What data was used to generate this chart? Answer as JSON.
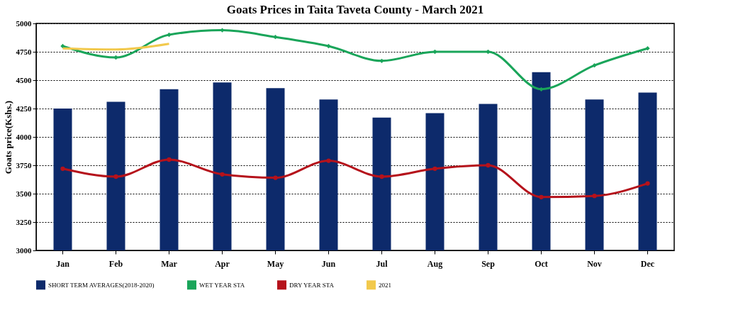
{
  "chart_data": {
    "type": "bar",
    "title": "Goats Prices in Taita Taveta County - March 2021",
    "ylabel": "Goats price(Kshs.)",
    "categories": [
      "Jan",
      "Feb",
      "Mar",
      "Apr",
      "May",
      "Jun",
      "Jul",
      "Aug",
      "Sep",
      "Oct",
      "Nov",
      "Dec"
    ],
    "series": [
      {
        "name": "SHORT TERM AVERAGES(2018-2020)",
        "color": "#0d2a6b",
        "values": [
          4250,
          4310,
          4420,
          4480,
          4430,
          4330,
          4170,
          4210,
          4290,
          4570,
          4330,
          4390
        ]
      },
      {
        "name": "WET YEAR STA",
        "type": "line",
        "color": "#1aa55a",
        "marker": "diamond",
        "values": [
          4800,
          4700,
          4900,
          4940,
          4880,
          4800,
          4670,
          4750,
          4750,
          4420,
          4630,
          4780
        ]
      },
      {
        "name": "DRY YEAR STA",
        "type": "line",
        "color": "#b5121b",
        "marker": "circle",
        "values": [
          3720,
          3650,
          3800,
          3670,
          3640,
          3790,
          3650,
          3720,
          3750,
          3470,
          3480,
          3590
        ]
      },
      {
        "name": "2021",
        "type": "line",
        "color": "#f2c94c",
        "marker": "none",
        "values": [
          4780,
          4770,
          4820,
          null,
          null,
          null,
          null,
          null,
          null,
          null,
          null,
          null
        ]
      }
    ],
    "ylim": [
      3000,
      5000
    ],
    "yticks": [
      3000,
      3250,
      3500,
      3750,
      4000,
      4250,
      4500,
      4750,
      5000
    ],
    "grid": "y",
    "legend": "bottom",
    "line_style": "solid"
  }
}
